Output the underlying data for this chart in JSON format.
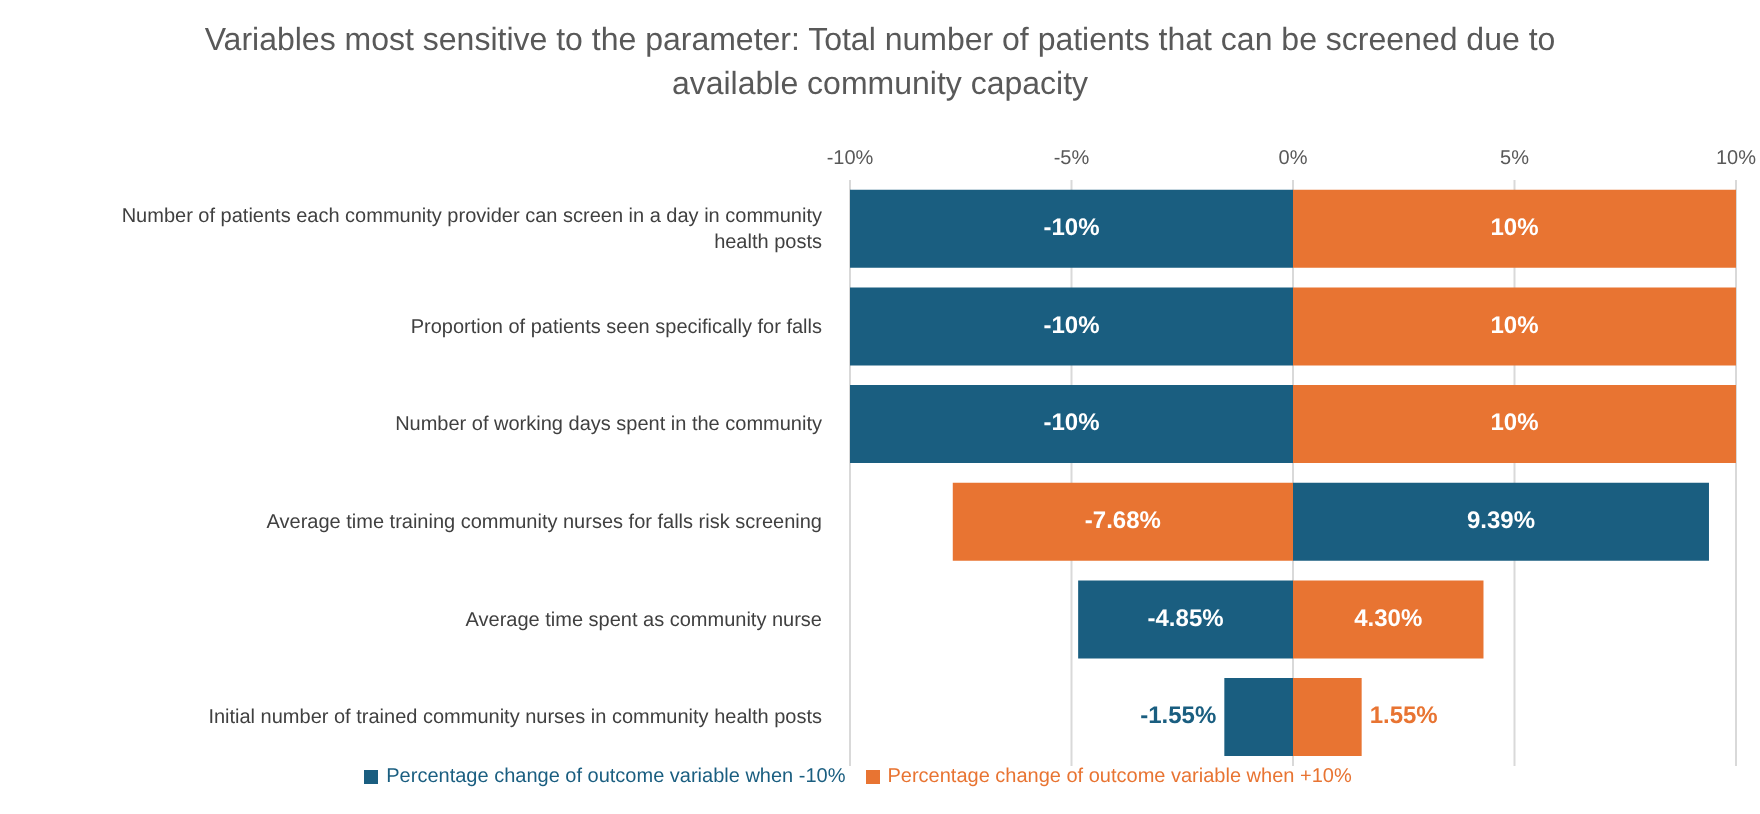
{
  "chart_data": {
    "type": "bar",
    "orientation": "horizontal",
    "title": "Variables most sensitive to the parameter: Total number of patients that can be screened due to available community capacity",
    "categories": [
      "Number of patients each community provider can screen in a day in community health posts",
      "Proportion of patients seen specifically for falls",
      "Number of working days spent in the community",
      "Average time training community nurses for falls risk screening",
      "Average time spent as community nurse",
      "Initial number of trained community nurses in community health posts"
    ],
    "series": [
      {
        "name": "Percentage change of outcome variable when -10%",
        "color": "#1a5e80",
        "values": [
          -10,
          -10,
          -10,
          9.39,
          -4.85,
          -1.55
        ],
        "value_labels": [
          "-10%",
          "-10%",
          "-10%",
          "9.39%",
          "-4.85%",
          "-1.55%"
        ]
      },
      {
        "name": "Percentage change of outcome variable when +10%",
        "color": "#e87432",
        "values": [
          10,
          10,
          10,
          -7.68,
          4.3,
          1.55
        ],
        "value_labels": [
          "10%",
          "10%",
          "10%",
          "-7.68%",
          "4.30%",
          "1.55%"
        ]
      }
    ],
    "xlim": [
      -10,
      10
    ],
    "xticks": [
      {
        "value": -10,
        "label": "-10%"
      },
      {
        "value": -5,
        "label": "-5%"
      },
      {
        "value": 0,
        "label": "0%"
      },
      {
        "value": 5,
        "label": "5%"
      },
      {
        "value": 10,
        "label": "10%"
      }
    ],
    "grid": "x",
    "legend": "bottom",
    "stacked": true
  }
}
